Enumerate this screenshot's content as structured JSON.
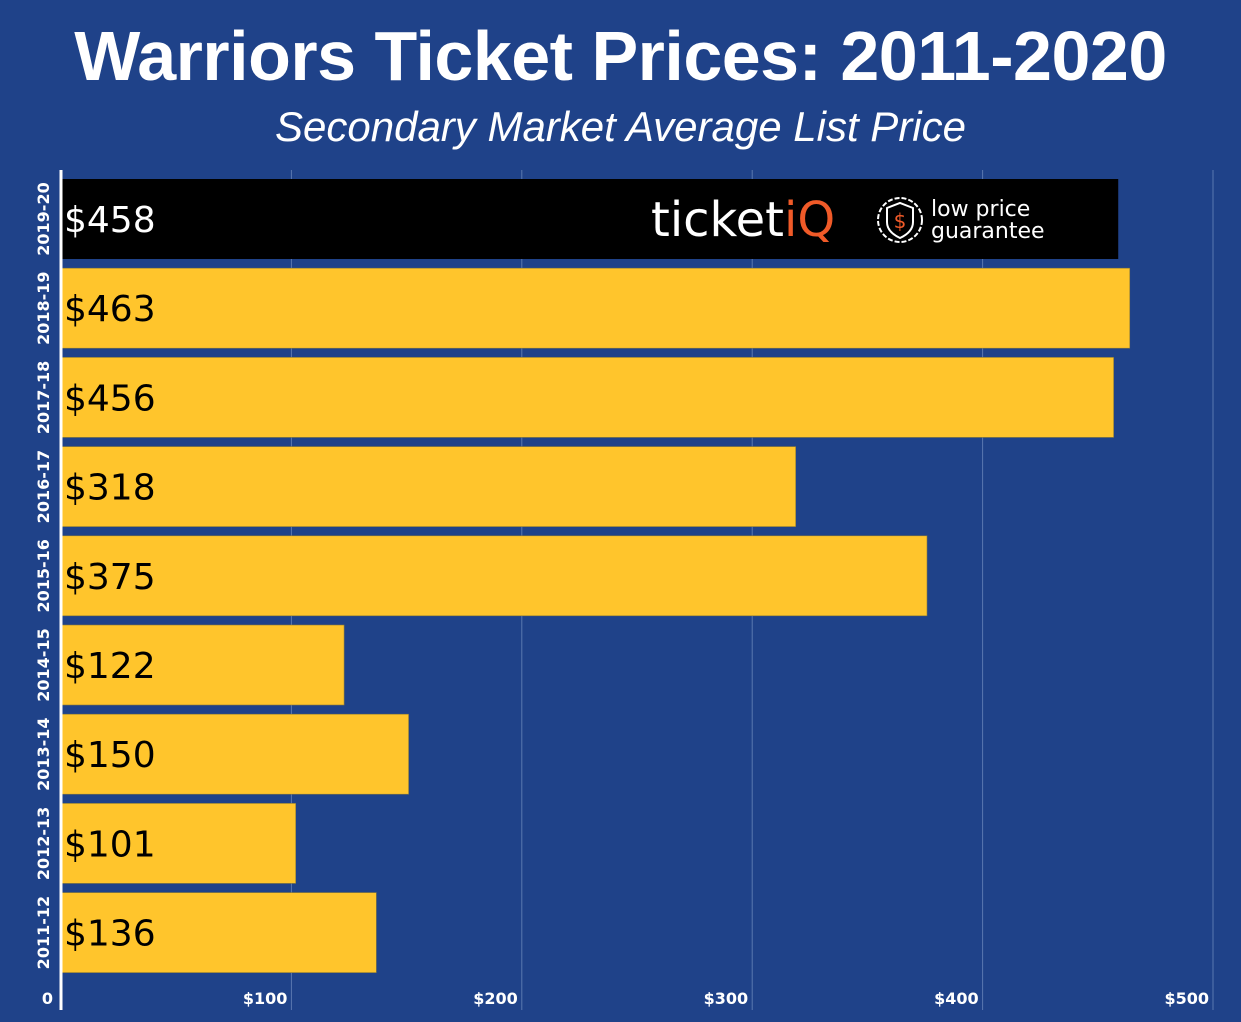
{
  "title": "Warriors Ticket Prices: 2011-2020",
  "subtitle": "Secondary Market Average List Price",
  "colors": {
    "background": "#1f4289",
    "bar": "#ffc52c",
    "highlight_bar": "#000000",
    "logo_accent": "#f05a28"
  },
  "logo": {
    "brand_text_main": "ticket",
    "brand_text_accent": "iQ",
    "badge_icon": "dollar-shield-icon",
    "tagline_line1": "low price",
    "tagline_line2": "guarantee"
  },
  "chart_data": {
    "type": "bar",
    "orientation": "horizontal",
    "title": "Warriors Ticket Prices: 2011-2020",
    "subtitle": "Secondary Market Average List Price",
    "xlabel": "",
    "ylabel": "",
    "xlim": [
      0,
      500
    ],
    "grid": true,
    "x_ticks": [
      0,
      100,
      200,
      300,
      400,
      500
    ],
    "x_tick_labels": [
      "0",
      "$100",
      "$200",
      "$300",
      "$400",
      "$500"
    ],
    "categories": [
      "2019-20",
      "2018-19",
      "2017-18",
      "2016-17",
      "2015-16",
      "2014-15",
      "2013-14",
      "2012-13",
      "2011-12"
    ],
    "values": [
      458,
      463,
      456,
      318,
      375,
      122,
      150,
      101,
      136
    ],
    "value_labels": [
      "$458",
      "$463",
      "$456",
      "$318",
      "$375",
      "$122",
      "$150",
      "$101",
      "$136"
    ],
    "highlight_index": 0
  }
}
